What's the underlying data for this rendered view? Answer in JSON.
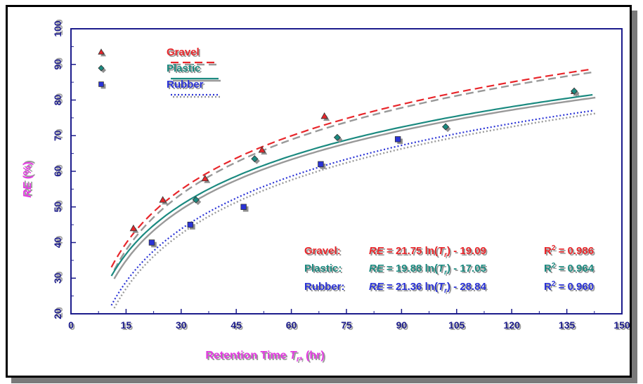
{
  "colors": {
    "gravel": "#e8262b",
    "plastic": "#1b8a80",
    "rubber": "#2a33d6",
    "axis_title": "#e23be0",
    "axis": "#1c1c8c",
    "shadow": "#999999"
  },
  "chart_data": {
    "type": "scatter",
    "xlabel_main": "Retention Time ",
    "xlabel_symbol": "T",
    "xlabel_sub": "r",
    "xlabel_unit": ", (hr)",
    "ylabel_symbol": "RE",
    "ylabel_unit": " (%)",
    "xlim": [
      0,
      150
    ],
    "ylim": [
      20,
      100
    ],
    "x_ticks": [
      "0",
      "15",
      "30",
      "45",
      "60",
      "75",
      "90",
      "105",
      "120",
      "135",
      "150"
    ],
    "y_ticks": [
      "20",
      "30",
      "40",
      "50",
      "60",
      "70",
      "80",
      "90",
      "100"
    ],
    "grid": false,
    "legend_position": "top-left",
    "series": [
      {
        "name": "Gravel",
        "marker": "triangle",
        "line_style": "dashed",
        "x": [
          17,
          25,
          36.5,
          52,
          69,
          137
        ],
        "y": [
          44,
          52,
          58,
          66,
          75.5,
          82.5
        ],
        "fit": {
          "a": 21.75,
          "b": -19.09,
          "x_range": [
            11,
            142
          ]
        },
        "equation": {
          "label": "Gravel:",
          "var": "RE",
          "mid": " = 21.75 ln(",
          "sym": "T",
          "sub": "r",
          "tail": ") - 19.09",
          "r2_label": "R",
          "r2_sup": "2",
          "r2_value": " = 0.986"
        }
      },
      {
        "name": "Plastic",
        "marker": "diamond",
        "line_style": "solid",
        "x": [
          34,
          50,
          72.5,
          102,
          137
        ],
        "y": [
          52,
          63.5,
          69.5,
          72.5,
          82.5
        ],
        "fit": {
          "a": 19.88,
          "b": -17.05,
          "x_range": [
            11,
            142
          ]
        },
        "equation": {
          "label": "Plastic:",
          "var": "RE",
          "mid": " = 19.88 ln(",
          "sym": "T",
          "sub": "r",
          "tail": ") - 17.05",
          "r2_label": "R",
          "r2_sup": "2",
          "r2_value": " = 0.964"
        }
      },
      {
        "name": "Rubber",
        "marker": "square",
        "line_style": "dotted",
        "x": [
          22,
          32.5,
          47,
          68,
          89
        ],
        "y": [
          40,
          45,
          50,
          62,
          69
        ],
        "fit": {
          "a": 21.36,
          "b": -28.84,
          "x_range": [
            11,
            142
          ]
        },
        "equation": {
          "label": "Rubber:",
          "var": "RE",
          "mid": " = 21.36 ln(",
          "sym": "T",
          "sub": "r",
          "tail": ") - 28.84",
          "r2_label": "R",
          "r2_sup": "2",
          "r2_value": " = 0.960"
        }
      }
    ]
  }
}
